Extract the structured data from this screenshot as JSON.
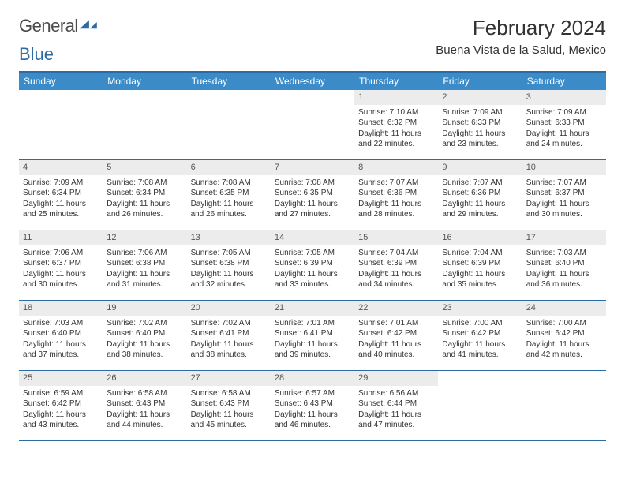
{
  "logo": {
    "text1": "General",
    "text2": "Blue"
  },
  "title": "February 2024",
  "location": "Buena Vista de la Salud, Mexico",
  "colors": {
    "header_bg": "#3b8bc9",
    "header_border": "#2d6ca2",
    "daynum_bg": "#ececec",
    "text": "#333333"
  },
  "dow": [
    "Sunday",
    "Monday",
    "Tuesday",
    "Wednesday",
    "Thursday",
    "Friday",
    "Saturday"
  ],
  "weeks": [
    [
      null,
      null,
      null,
      null,
      {
        "n": "1",
        "sr": "Sunrise: 7:10 AM",
        "ss": "Sunset: 6:32 PM",
        "dl": "Daylight: 11 hours and 22 minutes."
      },
      {
        "n": "2",
        "sr": "Sunrise: 7:09 AM",
        "ss": "Sunset: 6:33 PM",
        "dl": "Daylight: 11 hours and 23 minutes."
      },
      {
        "n": "3",
        "sr": "Sunrise: 7:09 AM",
        "ss": "Sunset: 6:33 PM",
        "dl": "Daylight: 11 hours and 24 minutes."
      }
    ],
    [
      {
        "n": "4",
        "sr": "Sunrise: 7:09 AM",
        "ss": "Sunset: 6:34 PM",
        "dl": "Daylight: 11 hours and 25 minutes."
      },
      {
        "n": "5",
        "sr": "Sunrise: 7:08 AM",
        "ss": "Sunset: 6:34 PM",
        "dl": "Daylight: 11 hours and 26 minutes."
      },
      {
        "n": "6",
        "sr": "Sunrise: 7:08 AM",
        "ss": "Sunset: 6:35 PM",
        "dl": "Daylight: 11 hours and 26 minutes."
      },
      {
        "n": "7",
        "sr": "Sunrise: 7:08 AM",
        "ss": "Sunset: 6:35 PM",
        "dl": "Daylight: 11 hours and 27 minutes."
      },
      {
        "n": "8",
        "sr": "Sunrise: 7:07 AM",
        "ss": "Sunset: 6:36 PM",
        "dl": "Daylight: 11 hours and 28 minutes."
      },
      {
        "n": "9",
        "sr": "Sunrise: 7:07 AM",
        "ss": "Sunset: 6:36 PM",
        "dl": "Daylight: 11 hours and 29 minutes."
      },
      {
        "n": "10",
        "sr": "Sunrise: 7:07 AM",
        "ss": "Sunset: 6:37 PM",
        "dl": "Daylight: 11 hours and 30 minutes."
      }
    ],
    [
      {
        "n": "11",
        "sr": "Sunrise: 7:06 AM",
        "ss": "Sunset: 6:37 PM",
        "dl": "Daylight: 11 hours and 30 minutes."
      },
      {
        "n": "12",
        "sr": "Sunrise: 7:06 AM",
        "ss": "Sunset: 6:38 PM",
        "dl": "Daylight: 11 hours and 31 minutes."
      },
      {
        "n": "13",
        "sr": "Sunrise: 7:05 AM",
        "ss": "Sunset: 6:38 PM",
        "dl": "Daylight: 11 hours and 32 minutes."
      },
      {
        "n": "14",
        "sr": "Sunrise: 7:05 AM",
        "ss": "Sunset: 6:39 PM",
        "dl": "Daylight: 11 hours and 33 minutes."
      },
      {
        "n": "15",
        "sr": "Sunrise: 7:04 AM",
        "ss": "Sunset: 6:39 PM",
        "dl": "Daylight: 11 hours and 34 minutes."
      },
      {
        "n": "16",
        "sr": "Sunrise: 7:04 AM",
        "ss": "Sunset: 6:39 PM",
        "dl": "Daylight: 11 hours and 35 minutes."
      },
      {
        "n": "17",
        "sr": "Sunrise: 7:03 AM",
        "ss": "Sunset: 6:40 PM",
        "dl": "Daylight: 11 hours and 36 minutes."
      }
    ],
    [
      {
        "n": "18",
        "sr": "Sunrise: 7:03 AM",
        "ss": "Sunset: 6:40 PM",
        "dl": "Daylight: 11 hours and 37 minutes."
      },
      {
        "n": "19",
        "sr": "Sunrise: 7:02 AM",
        "ss": "Sunset: 6:40 PM",
        "dl": "Daylight: 11 hours and 38 minutes."
      },
      {
        "n": "20",
        "sr": "Sunrise: 7:02 AM",
        "ss": "Sunset: 6:41 PM",
        "dl": "Daylight: 11 hours and 38 minutes."
      },
      {
        "n": "21",
        "sr": "Sunrise: 7:01 AM",
        "ss": "Sunset: 6:41 PM",
        "dl": "Daylight: 11 hours and 39 minutes."
      },
      {
        "n": "22",
        "sr": "Sunrise: 7:01 AM",
        "ss": "Sunset: 6:42 PM",
        "dl": "Daylight: 11 hours and 40 minutes."
      },
      {
        "n": "23",
        "sr": "Sunrise: 7:00 AM",
        "ss": "Sunset: 6:42 PM",
        "dl": "Daylight: 11 hours and 41 minutes."
      },
      {
        "n": "24",
        "sr": "Sunrise: 7:00 AM",
        "ss": "Sunset: 6:42 PM",
        "dl": "Daylight: 11 hours and 42 minutes."
      }
    ],
    [
      {
        "n": "25",
        "sr": "Sunrise: 6:59 AM",
        "ss": "Sunset: 6:42 PM",
        "dl": "Daylight: 11 hours and 43 minutes."
      },
      {
        "n": "26",
        "sr": "Sunrise: 6:58 AM",
        "ss": "Sunset: 6:43 PM",
        "dl": "Daylight: 11 hours and 44 minutes."
      },
      {
        "n": "27",
        "sr": "Sunrise: 6:58 AM",
        "ss": "Sunset: 6:43 PM",
        "dl": "Daylight: 11 hours and 45 minutes."
      },
      {
        "n": "28",
        "sr": "Sunrise: 6:57 AM",
        "ss": "Sunset: 6:43 PM",
        "dl": "Daylight: 11 hours and 46 minutes."
      },
      {
        "n": "29",
        "sr": "Sunrise: 6:56 AM",
        "ss": "Sunset: 6:44 PM",
        "dl": "Daylight: 11 hours and 47 minutes."
      },
      null,
      null
    ]
  ]
}
